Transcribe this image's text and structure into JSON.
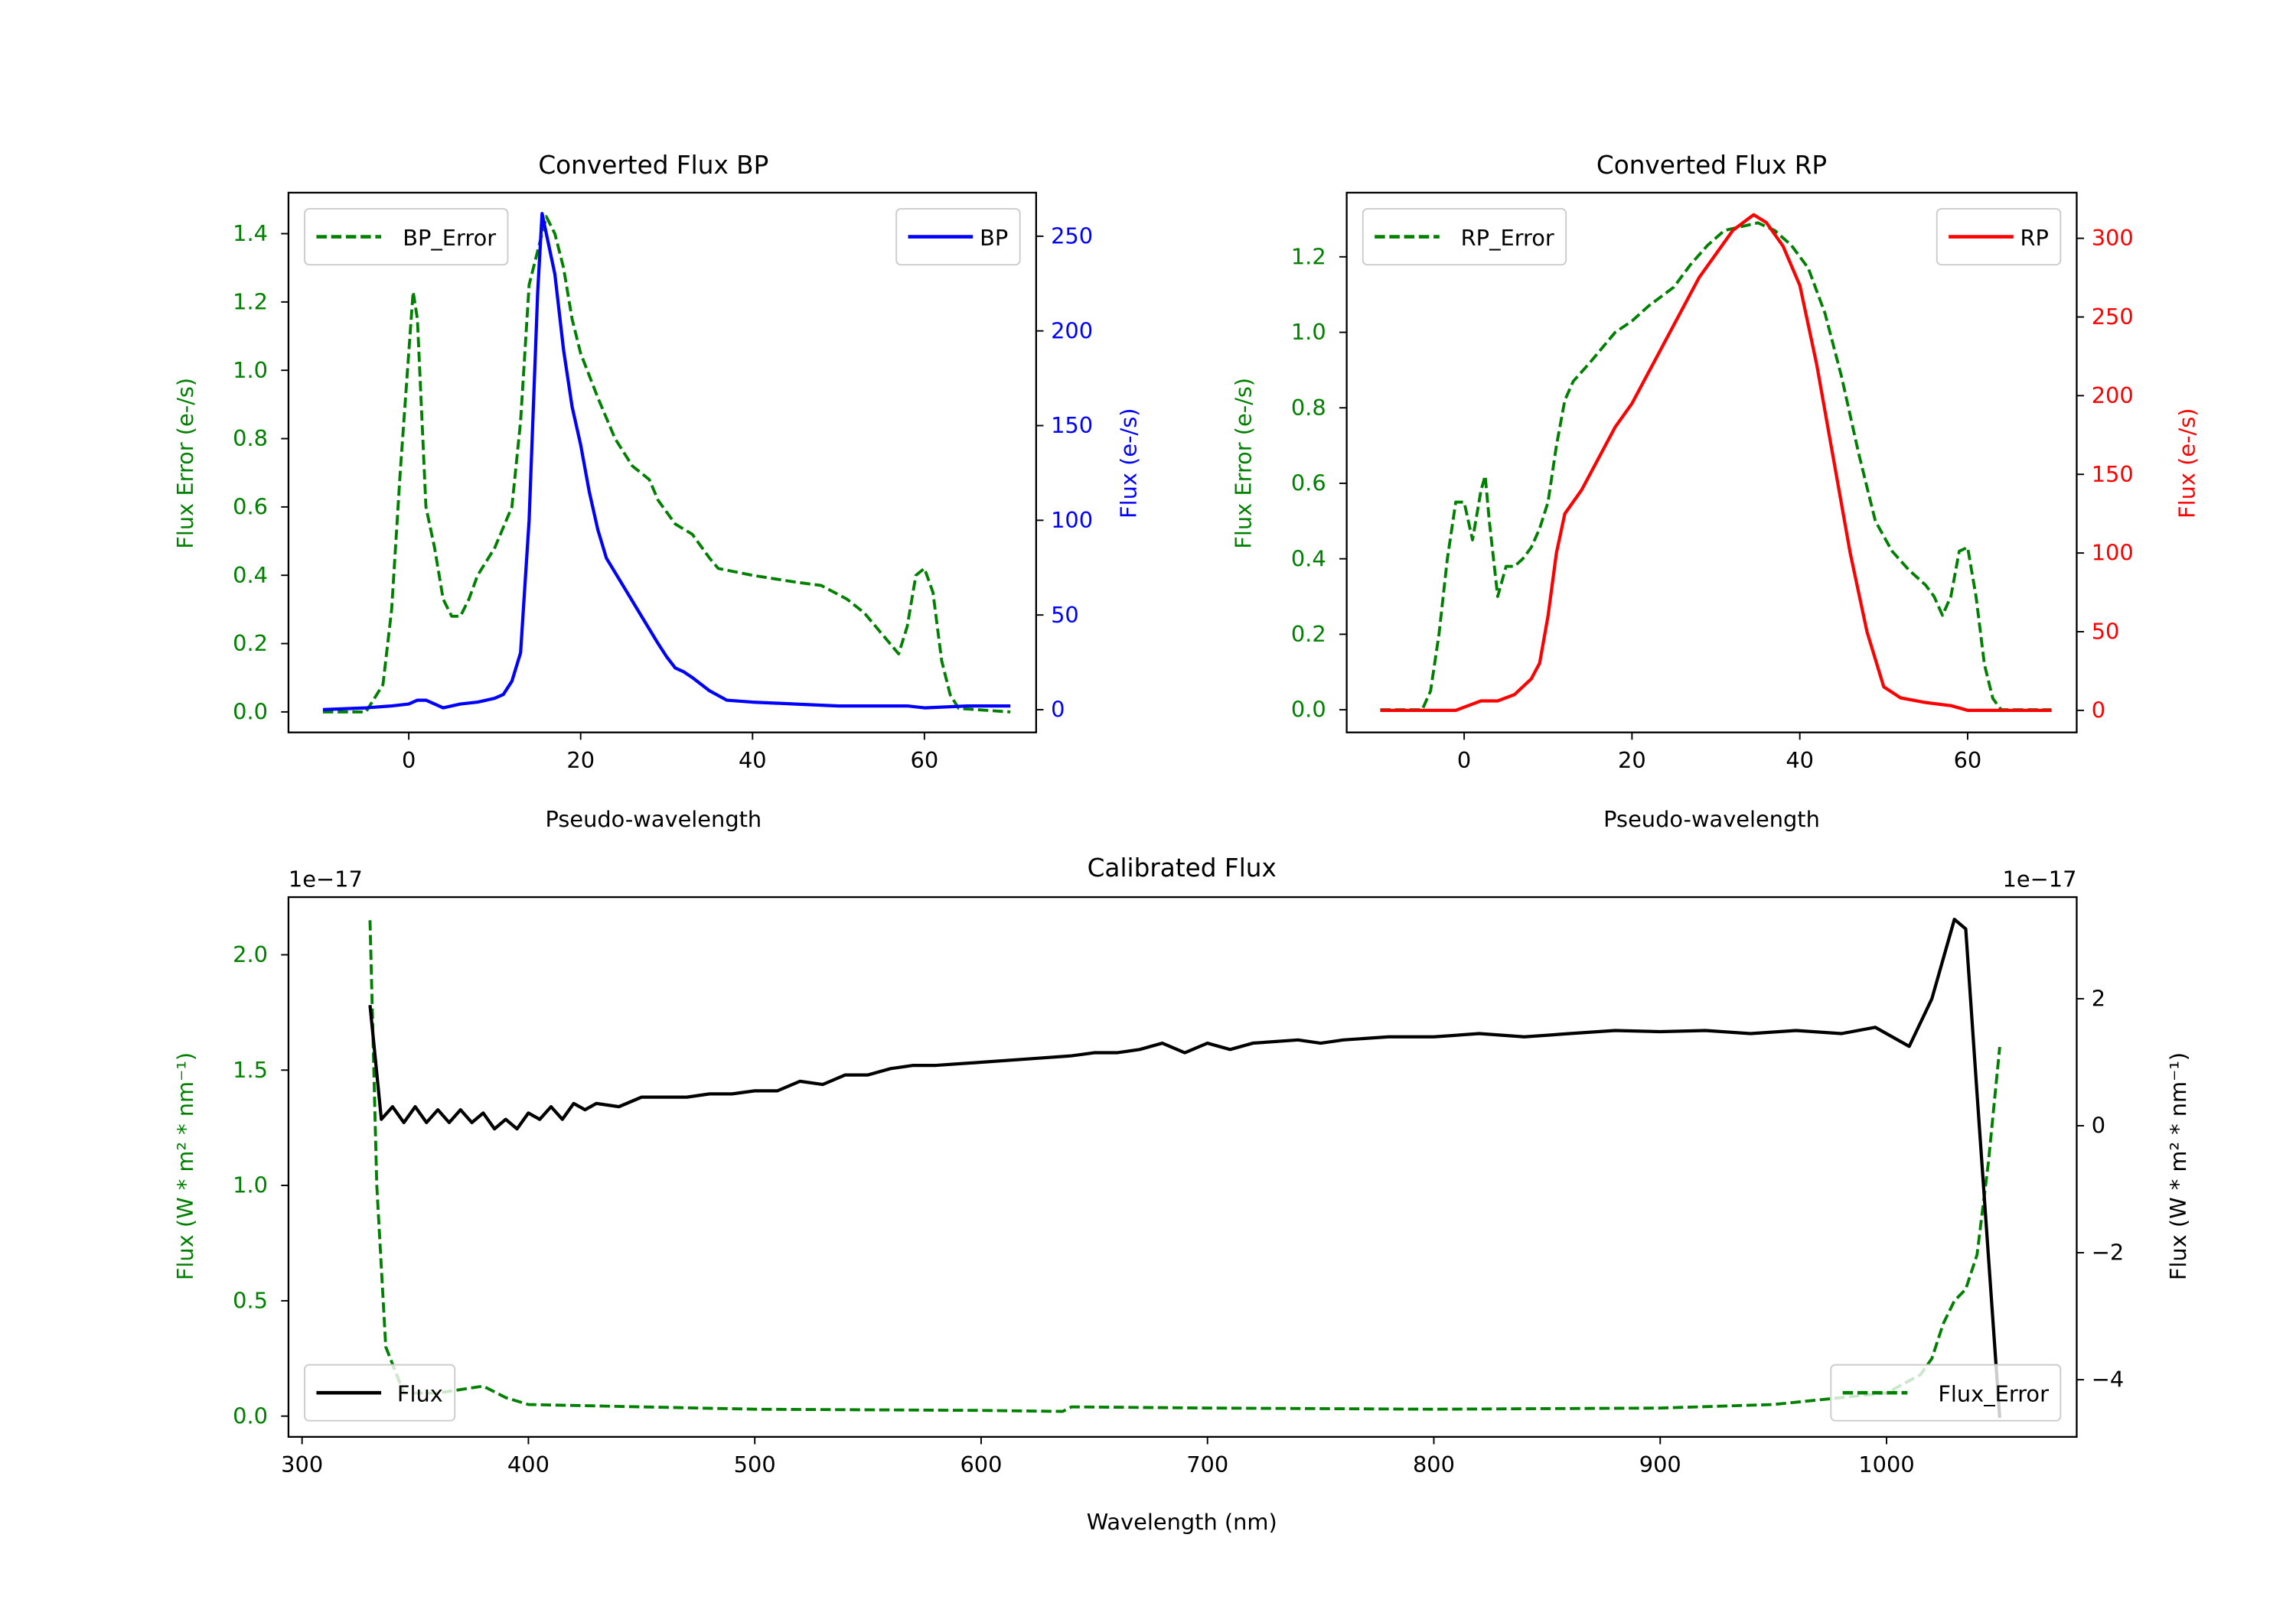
{
  "chart_data": [
    {
      "type": "line",
      "title": "Converted Flux BP",
      "xlabel": "Pseudo-wavelength",
      "ylabel_left": "Flux Error (e-/s)",
      "ylabel_right": "Flux (e-/s)",
      "xlim": [
        -14,
        73
      ],
      "ylim_left": [
        -0.06,
        1.52
      ],
      "ylim_right": [
        -12,
        273
      ],
      "xticks": [
        0,
        20,
        40,
        60
      ],
      "yticks_left": [
        "0.0",
        "0.2",
        "0.4",
        "0.6",
        "0.8",
        "1.0",
        "1.2",
        "1.4"
      ],
      "yticks_right": [
        "0",
        "50",
        "100",
        "150",
        "200",
        "250"
      ],
      "legend": [
        {
          "label": "BP_Error",
          "position": "top-left"
        },
        {
          "label": "BP",
          "position": "top-right"
        }
      ],
      "colors": {
        "error": "#008000",
        "flux": "#0000ff",
        "right_axis": "#0000ff",
        "left_axis": "#008000"
      },
      "series": [
        {
          "name": "BP_Error",
          "axis": "left",
          "style": "dashed",
          "x": [
            -10,
            -5,
            -3,
            -2,
            -1,
            0,
            0.5,
            1,
            2,
            3,
            4,
            5,
            6,
            7,
            8,
            10,
            12,
            13,
            14,
            16,
            17,
            18,
            19,
            20,
            22,
            24,
            26,
            28,
            29,
            31,
            33,
            35,
            36,
            40,
            45,
            48,
            51,
            53,
            56,
            57,
            58,
            59,
            60,
            61,
            62,
            63,
            64,
            70
          ],
          "y": [
            0,
            0,
            0.08,
            0.3,
            0.7,
            1.05,
            1.23,
            1.15,
            0.6,
            0.48,
            0.33,
            0.28,
            0.28,
            0.33,
            0.4,
            0.48,
            0.6,
            0.85,
            1.25,
            1.45,
            1.4,
            1.3,
            1.15,
            1.05,
            0.92,
            0.8,
            0.72,
            0.68,
            0.62,
            0.55,
            0.52,
            0.45,
            0.42,
            0.4,
            0.38,
            0.37,
            0.33,
            0.29,
            0.2,
            0.17,
            0.25,
            0.4,
            0.42,
            0.35,
            0.15,
            0.05,
            0.01,
            0
          ]
        },
        {
          "name": "BP",
          "axis": "right",
          "style": "solid",
          "x": [
            -10,
            -5,
            -2,
            0,
            1,
            2,
            3,
            4,
            5,
            6,
            8,
            10,
            11,
            12,
            13,
            14,
            15,
            15.5,
            17,
            18,
            19,
            20,
            21,
            22,
            23,
            25,
            27,
            29,
            30,
            31,
            32,
            33,
            35,
            37,
            40,
            45,
            50,
            55,
            58,
            60,
            65,
            70
          ],
          "y": [
            0,
            1,
            2,
            3,
            5,
            5,
            3,
            1,
            2,
            3,
            4,
            6,
            8,
            15,
            30,
            100,
            220,
            262,
            230,
            190,
            160,
            140,
            115,
            95,
            80,
            65,
            50,
            35,
            28,
            22,
            20,
            17,
            10,
            5,
            4,
            3,
            2,
            2,
            2,
            1,
            2,
            2
          ]
        }
      ]
    },
    {
      "type": "line",
      "title": "Converted Flux RP",
      "xlabel": "Pseudo-wavelength",
      "ylabel_left": "Flux Error (e-/s)",
      "ylabel_right": "Flux (e-/s)",
      "xlim": [
        -14,
        73
      ],
      "ylim_left": [
        -0.06,
        1.37
      ],
      "ylim_right": [
        -14,
        329
      ],
      "xticks": [
        0,
        20,
        40,
        60
      ],
      "yticks_left": [
        "0.0",
        "0.2",
        "0.4",
        "0.6",
        "0.8",
        "1.0",
        "1.2"
      ],
      "yticks_right": [
        "0",
        "50",
        "100",
        "150",
        "200",
        "250",
        "300"
      ],
      "legend": [
        {
          "label": "RP_Error",
          "position": "top-left"
        },
        {
          "label": "RP",
          "position": "top-right"
        }
      ],
      "colors": {
        "error": "#008000",
        "flux": "#ff0000",
        "right_axis": "#ff0000",
        "left_axis": "#008000"
      },
      "series": [
        {
          "name": "RP_Error",
          "axis": "left",
          "style": "dashed",
          "x": [
            -10,
            -5,
            -4,
            -3,
            -2,
            -1,
            0,
            1,
            2,
            2.5,
            3,
            4,
            5,
            6,
            7,
            8,
            9,
            10,
            11,
            12,
            13,
            15,
            18,
            20,
            22,
            25,
            27,
            29,
            31,
            33,
            35,
            37,
            39,
            41,
            43,
            45,
            47,
            49,
            51,
            53,
            55,
            56,
            57,
            58,
            59,
            60,
            61,
            62,
            63,
            64,
            70
          ],
          "y": [
            0,
            0,
            0.05,
            0.2,
            0.4,
            0.55,
            0.55,
            0.45,
            0.58,
            0.62,
            0.5,
            0.3,
            0.38,
            0.38,
            0.4,
            0.43,
            0.48,
            0.55,
            0.7,
            0.82,
            0.87,
            0.92,
            1.0,
            1.03,
            1.07,
            1.12,
            1.18,
            1.23,
            1.27,
            1.28,
            1.29,
            1.27,
            1.23,
            1.17,
            1.05,
            0.88,
            0.68,
            0.5,
            0.42,
            0.37,
            0.33,
            0.3,
            0.25,
            0.3,
            0.42,
            0.43,
            0.3,
            0.12,
            0.03,
            0,
            0
          ]
        },
        {
          "name": "RP",
          "axis": "right",
          "style": "solid",
          "x": [
            -10,
            -1,
            2,
            4,
            6,
            8,
            9,
            10,
            11,
            12,
            14,
            16,
            18,
            20,
            22,
            24,
            26,
            28,
            30,
            32,
            34.5,
            36,
            38,
            40,
            42,
            44,
            46,
            48,
            50,
            52,
            55,
            58,
            60,
            70
          ],
          "y": [
            0,
            0,
            6,
            6,
            10,
            20,
            30,
            60,
            100,
            125,
            140,
            160,
            180,
            195,
            215,
            235,
            255,
            275,
            290,
            305,
            315,
            310,
            295,
            270,
            220,
            160,
            100,
            50,
            15,
            8,
            5,
            3,
            0,
            0
          ]
        }
      ]
    },
    {
      "type": "line",
      "title": "Calibrated Flux",
      "xlabel": "Wavelength (nm)",
      "ylabel_left": "Flux (W * m² * nm⁻¹)",
      "ylabel_right": "Flux (W * m² * nm⁻¹)",
      "offset_left": "1e−17",
      "offset_right": "1e−17",
      "xlim": [
        294,
        1084
      ],
      "ylim_left": [
        -0.09,
        2.25
      ],
      "ylim_right": [
        -4.9,
        3.6
      ],
      "xticks": [
        300,
        400,
        500,
        600,
        700,
        800,
        900,
        1000
      ],
      "yticks_left": [
        "0.0",
        "0.5",
        "1.0",
        "1.5",
        "2.0"
      ],
      "yticks_right": [
        "−4",
        "−2",
        "0",
        "2"
      ],
      "legend": [
        {
          "label": "Flux",
          "position": "bottom-left"
        },
        {
          "label": "Flux_Error",
          "position": "bottom-right"
        }
      ],
      "colors": {
        "error": "#008000",
        "flux": "#000000",
        "right_axis": "#000000",
        "left_axis": "#008000"
      },
      "series": [
        {
          "name": "Flux_Error",
          "axis": "left",
          "style": "dashed",
          "x": [
            330,
            333,
            337,
            345,
            360,
            380,
            390,
            400,
            450,
            500,
            600,
            636,
            640,
            700,
            800,
            900,
            950,
            1000,
            1015,
            1020,
            1025,
            1030,
            1035,
            1040,
            1045,
            1050
          ],
          "y": [
            2.15,
            1.0,
            0.3,
            0.1,
            0.1,
            0.13,
            0.08,
            0.05,
            0.04,
            0.03,
            0.025,
            0.02,
            0.04,
            0.035,
            0.03,
            0.035,
            0.05,
            0.1,
            0.18,
            0.25,
            0.4,
            0.5,
            0.55,
            0.7,
            1.1,
            1.6
          ]
        },
        {
          "name": "Flux",
          "axis": "right",
          "style": "solid",
          "x": [
            330,
            332,
            335,
            340,
            345,
            350,
            355,
            360,
            365,
            370,
            375,
            380,
            385,
            390,
            395,
            400,
            405,
            410,
            415,
            420,
            425,
            430,
            440,
            450,
            460,
            470,
            480,
            490,
            500,
            510,
            520,
            530,
            540,
            550,
            560,
            570,
            580,
            600,
            620,
            640,
            650,
            660,
            670,
            680,
            690,
            700,
            710,
            720,
            740,
            750,
            760,
            780,
            800,
            820,
            840,
            860,
            880,
            900,
            920,
            940,
            960,
            980,
            995,
            1010,
            1020,
            1030,
            1035,
            1040,
            1050
          ],
          "y": [
            1.9,
            1.2,
            0.1,
            0.3,
            0.05,
            0.3,
            0.05,
            0.25,
            0.05,
            0.25,
            0.05,
            0.2,
            -0.05,
            0.1,
            -0.05,
            0.2,
            0.1,
            0.3,
            0.1,
            0.35,
            0.25,
            0.35,
            0.3,
            0.45,
            0.45,
            0.45,
            0.5,
            0.5,
            0.55,
            0.55,
            0.7,
            0.65,
            0.8,
            0.8,
            0.9,
            0.95,
            0.95,
            1.0,
            1.05,
            1.1,
            1.15,
            1.15,
            1.2,
            1.3,
            1.15,
            1.3,
            1.2,
            1.3,
            1.35,
            1.3,
            1.35,
            1.4,
            1.4,
            1.45,
            1.4,
            1.45,
            1.5,
            1.48,
            1.5,
            1.45,
            1.5,
            1.45,
            1.55,
            1.25,
            2.0,
            3.25,
            3.1,
            0.5,
            -4.6
          ]
        }
      ]
    }
  ]
}
